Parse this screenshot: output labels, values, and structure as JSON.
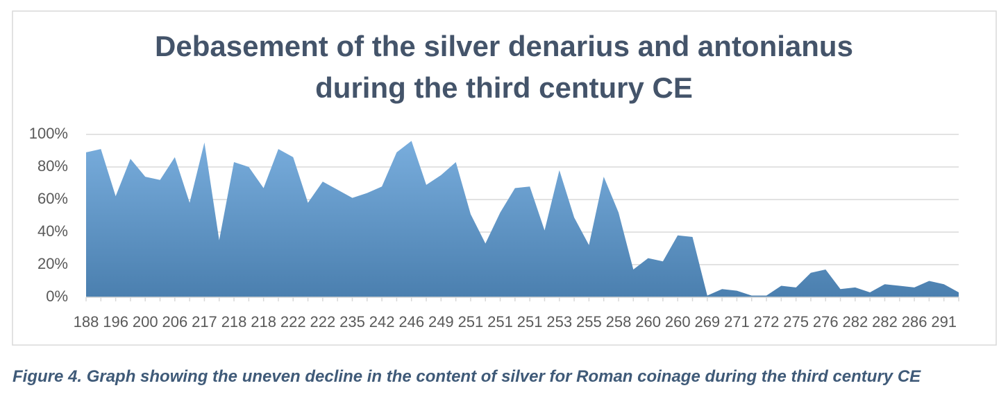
{
  "chart_data": {
    "type": "area",
    "title": [
      "Debasement of the silver denarius and antonianus",
      "during the third century CE"
    ],
    "categories": [
      "188",
      null,
      "196",
      null,
      "200",
      null,
      "206",
      null,
      "217",
      null,
      "218",
      null,
      "218",
      null,
      "222",
      null,
      "222",
      null,
      "235",
      null,
      "242",
      null,
      "246",
      null,
      "249",
      null,
      "251",
      null,
      "251",
      null,
      "251",
      null,
      "253",
      null,
      "255",
      null,
      "258",
      null,
      "260",
      null,
      "260",
      null,
      "269",
      null,
      "271",
      null,
      "272",
      null,
      "275",
      null,
      "276",
      null,
      "282",
      null,
      "282",
      null,
      "286",
      null,
      "291",
      null
    ],
    "values": [
      89,
      91,
      62,
      85,
      74,
      72,
      86,
      58,
      95,
      35,
      83,
      80,
      67,
      91,
      86,
      58,
      71,
      66,
      61,
      64,
      68,
      89,
      96,
      69,
      75,
      83,
      51,
      33,
      52,
      67,
      68,
      41,
      78,
      49,
      32,
      74,
      52,
      17,
      24,
      22,
      38,
      37,
      1,
      5,
      4,
      1,
      1,
      7,
      6,
      15,
      17,
      5,
      6,
      3,
      8,
      7,
      6,
      10,
      8,
      3
    ],
    "color": "#5b9bd5",
    "ylim": [
      0,
      100
    ],
    "yticks": [
      {
        "value": 0,
        "label": "0%"
      },
      {
        "value": 20,
        "label": "20%"
      },
      {
        "value": 40,
        "label": "40%"
      },
      {
        "value": 60,
        "label": "60%"
      },
      {
        "value": 80,
        "label": "80%"
      },
      {
        "value": 100,
        "label": "100%"
      }
    ],
    "grid": true
  },
  "caption": "Figure 4. Graph showing the uneven decline in the content of silver for Roman coinage during the third century CE"
}
